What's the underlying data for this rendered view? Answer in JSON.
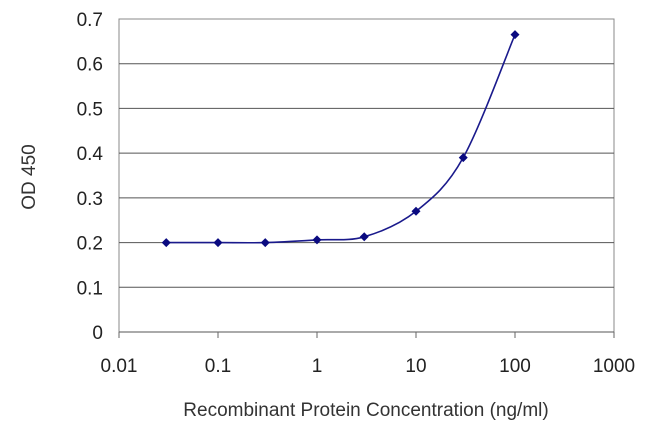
{
  "chart_data": {
    "type": "line",
    "title": "",
    "xlabel": "Recombinant Protein Concentration (ng/ml)",
    "ylabel": "OD 450",
    "x_scale": "log",
    "xlim": [
      0.01,
      1000
    ],
    "ylim": [
      0,
      0.7
    ],
    "x_ticks": [
      "0.01",
      "0.1",
      "1",
      "10",
      "100",
      "1000"
    ],
    "y_ticks": [
      "0",
      "0.1",
      "0.2",
      "0.3",
      "0.4",
      "0.5",
      "0.6",
      "0.7"
    ],
    "grid": "horizontal",
    "legend": "none",
    "series": [
      {
        "x": [
          0.03,
          0.1,
          0.3,
          1,
          3,
          10,
          30,
          100
        ],
        "y": [
          0.2,
          0.2,
          0.2,
          0.206,
          0.213,
          0.27,
          0.39,
          0.665
        ]
      }
    ],
    "colors": {
      "series": "#1a1a8c",
      "marker": "#0a0a80",
      "grid": "#555555",
      "plot_background": "#ffffff",
      "plot_border": "#888888"
    }
  }
}
